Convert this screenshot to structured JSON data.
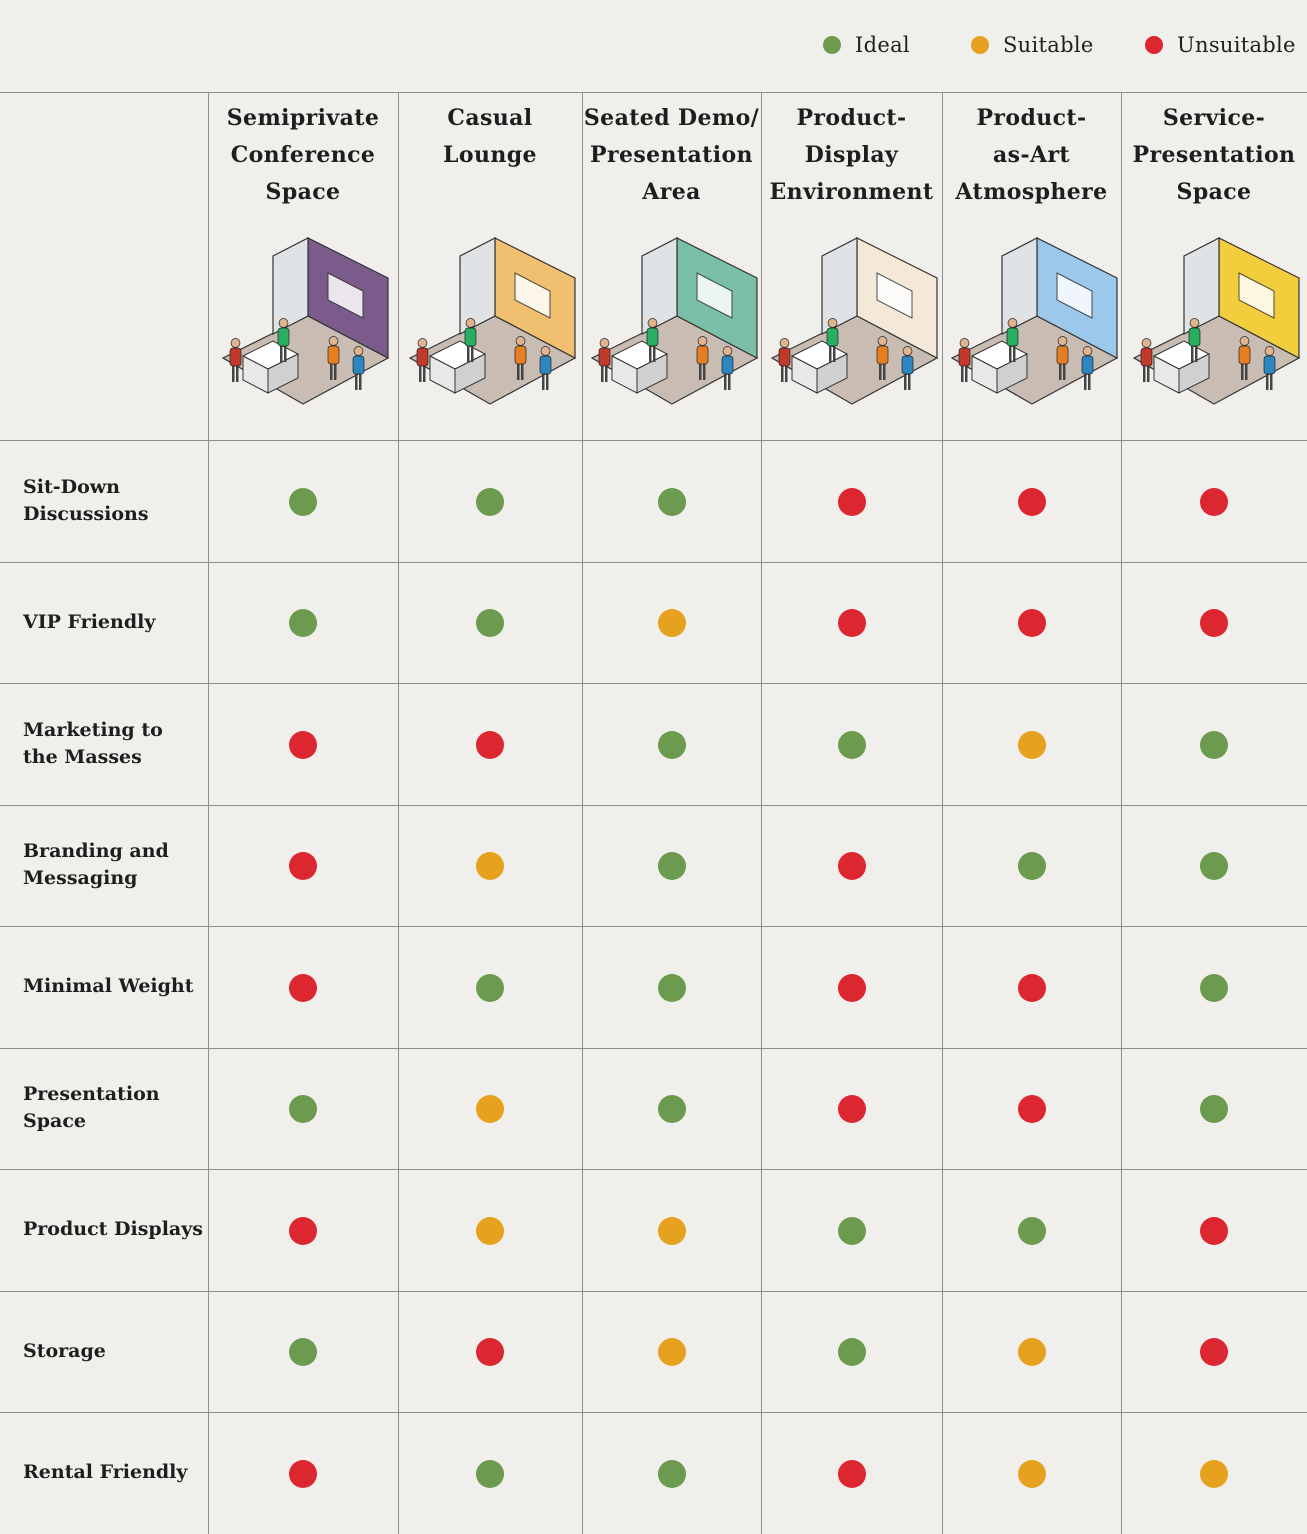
{
  "legend": [
    {
      "label": "Ideal",
      "color": "#6c9a4f",
      "key": "ideal"
    },
    {
      "label": "Suitable",
      "color": "#e6a21e",
      "key": "suitable"
    },
    {
      "label": "Unsuitable",
      "color": "#dc2630",
      "key": "unsuitable"
    }
  ],
  "columns": [
    {
      "label": "Semiprivate\nConference\nSpace",
      "icon": "conference-booth-illustration",
      "accent": "#7b5a8c"
    },
    {
      "label": "Casual\nLounge",
      "icon": "lounge-booth-illustration",
      "accent": "#f0c070"
    },
    {
      "label": "Seated Demo/\nPresentation\nArea",
      "icon": "demo-booth-illustration",
      "accent": "#7bbfa8"
    },
    {
      "label": "Product-\nDisplay\nEnvironment",
      "icon": "display-booth-illustration",
      "accent": "#f4e9d8"
    },
    {
      "label": "Product-\nas-Art\nAtmosphere",
      "icon": "art-booth-illustration",
      "accent": "#9cc8ec"
    },
    {
      "label": "Service-\nPresentation\nSpace",
      "icon": "service-booth-illustration",
      "accent": "#f2cd3c"
    }
  ],
  "chart_data": {
    "type": "table",
    "ratings": [
      "ideal",
      "suitable",
      "unsuitable"
    ],
    "rows": [
      {
        "label": "Sit-Down\nDiscussions",
        "values": [
          "ideal",
          "ideal",
          "ideal",
          "unsuitable",
          "unsuitable",
          "unsuitable"
        ]
      },
      {
        "label": "VIP Friendly",
        "values": [
          "ideal",
          "ideal",
          "suitable",
          "unsuitable",
          "unsuitable",
          "unsuitable"
        ]
      },
      {
        "label": "Marketing to\nthe Masses",
        "values": [
          "unsuitable",
          "unsuitable",
          "ideal",
          "ideal",
          "suitable",
          "ideal"
        ]
      },
      {
        "label": "Branding and\nMessaging",
        "values": [
          "unsuitable",
          "suitable",
          "ideal",
          "unsuitable",
          "ideal",
          "ideal"
        ]
      },
      {
        "label": "Minimal Weight",
        "values": [
          "unsuitable",
          "ideal",
          "ideal",
          "unsuitable",
          "unsuitable",
          "ideal"
        ]
      },
      {
        "label": "Presentation\nSpace",
        "values": [
          "ideal",
          "suitable",
          "ideal",
          "unsuitable",
          "unsuitable",
          "ideal"
        ]
      },
      {
        "label": "Product Displays",
        "values": [
          "unsuitable",
          "suitable",
          "suitable",
          "ideal",
          "ideal",
          "unsuitable"
        ]
      },
      {
        "label": "Storage",
        "values": [
          "ideal",
          "unsuitable",
          "suitable",
          "ideal",
          "suitable",
          "unsuitable"
        ]
      },
      {
        "label": "Rental Friendly",
        "values": [
          "unsuitable",
          "ideal",
          "ideal",
          "unsuitable",
          "suitable",
          "suitable"
        ]
      }
    ]
  }
}
